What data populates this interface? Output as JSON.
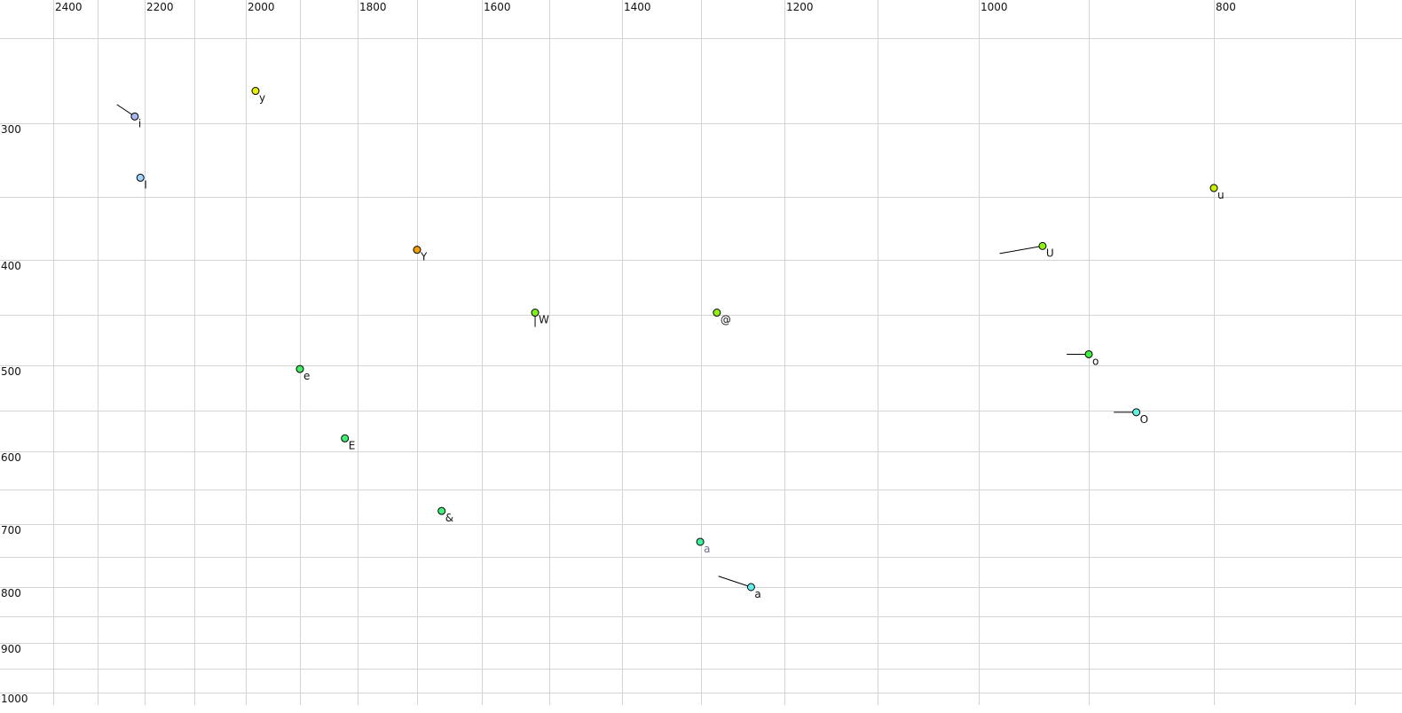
{
  "chart_data": {
    "type": "scatter",
    "title": "",
    "xlabel": "",
    "ylabel": "",
    "x_axis_reversed": true,
    "y_axis_reversed": true,
    "grid": true,
    "xlim": [
      2400,
      700
    ],
    "ylim": [
      250,
      1000
    ],
    "x_ticks": [
      2400,
      2200,
      2000,
      1800,
      1600,
      1400,
      1200,
      1000,
      800
    ],
    "x_gridlines": [
      2400,
      2300,
      2200,
      2100,
      2000,
      1900,
      1800,
      1700,
      1600,
      1500,
      1400,
      1300,
      1200,
      1100,
      1000,
      900,
      800,
      700
    ],
    "y_ticks": [
      300,
      400,
      500,
      600,
      700,
      800,
      900,
      1000
    ],
    "y_gridlines": [
      250,
      300,
      350,
      400,
      450,
      500,
      550,
      600,
      650,
      700,
      750,
      800,
      850,
      900,
      950,
      1000
    ],
    "points": [
      {
        "label": "i",
        "x": 2221,
        "y": 296,
        "color": "#a8b8f0",
        "trail_from": [
          2259,
          289
        ]
      },
      {
        "label": "I",
        "x": 2209,
        "y": 337,
        "color": "#a0d4ff",
        "trail_from": null
      },
      {
        "label": "y",
        "x": 1982,
        "y": 281,
        "color": "#e4f000",
        "trail_from": null
      },
      {
        "label": "Y",
        "x": 1700,
        "y": 392,
        "color": "#f0a000",
        "trail_from": null
      },
      {
        "label": "W",
        "x": 1521,
        "y": 448,
        "color": "#80f020",
        "trail_from": [
          1521,
          462
        ]
      },
      {
        "label": "@",
        "x": 1281,
        "y": 448,
        "color": "#90f010",
        "trail_from": null
      },
      {
        "label": "e",
        "x": 1900,
        "y": 504,
        "color": "#40f060",
        "trail_from": null
      },
      {
        "label": "E",
        "x": 1822,
        "y": 584,
        "color": "#40f070",
        "trail_from": null
      },
      {
        "label": "&",
        "x": 1662,
        "y": 681,
        "color": "#40f080",
        "trail_from": null
      },
      {
        "label": "a",
        "x": 1301,
        "y": 727,
        "color": "#40f0a0",
        "label_color": "#707090",
        "trail_from": null
      },
      {
        "label": "a",
        "x": 1240,
        "y": 800,
        "color": "#60f0f0",
        "trail_from": [
          1279,
          782
        ]
      },
      {
        "label": "U",
        "x": 942,
        "y": 389,
        "color": "#90f010",
        "trail_from": [
          981,
          395
        ]
      },
      {
        "label": "u",
        "x": 800,
        "y": 344,
        "color": "#c8f000",
        "trail_from": null
      },
      {
        "label": "o",
        "x": 900,
        "y": 489,
        "color": "#40f040",
        "trail_from": [
          920,
          489
        ]
      },
      {
        "label": "O",
        "x": 862,
        "y": 552,
        "color": "#60f0e0",
        "trail_from": [
          880,
          552
        ]
      }
    ]
  }
}
